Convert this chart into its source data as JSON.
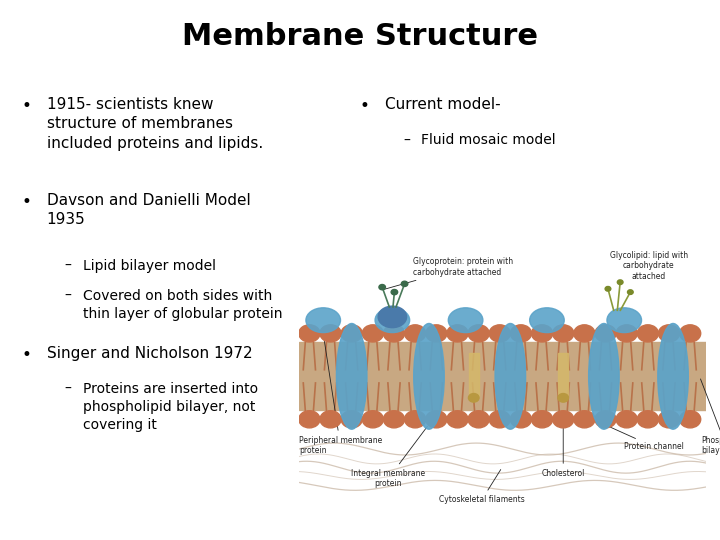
{
  "title": "Membrane Structure",
  "title_fontsize": 22,
  "title_fontweight": "bold",
  "background_color": "#ffffff",
  "text_color": "#000000",
  "bullet_left": [
    {
      "level": 0,
      "text": "1915- scientists knew\nstructure of membranes\nincluded proteins and lipids."
    },
    {
      "level": 0,
      "text": "Davson and Danielli Model\n1935"
    },
    {
      "level": 1,
      "text": "Lipid bilayer model"
    },
    {
      "level": 1,
      "text": "Covered on both sides with\nthin layer of globular protein"
    },
    {
      "level": 0,
      "text": "Singer and Nicholson 1972"
    },
    {
      "level": 1,
      "text": "Proteins are inserted into\nphospholipid bilayer, not\ncovering it"
    }
  ],
  "bullet_right": [
    {
      "level": 0,
      "text": "Current model-"
    },
    {
      "level": 1,
      "text": "Fluid mosaic model"
    }
  ],
  "font_size_bullet0": 11,
  "font_size_bullet1": 10,
  "bullet_symbol_0": "•",
  "bullet_symbol_1": "–",
  "head_color": "#c8714a",
  "tail_color": "#b8724a",
  "protein_color": "#5ba3c9",
  "glyco_color": "#5a7a9a",
  "glyco_branch_color": "#4a7a5a",
  "cholesterol_color": "#d4b86a",
  "filament_color": "#ccbbaa",
  "label_color": "#222222"
}
